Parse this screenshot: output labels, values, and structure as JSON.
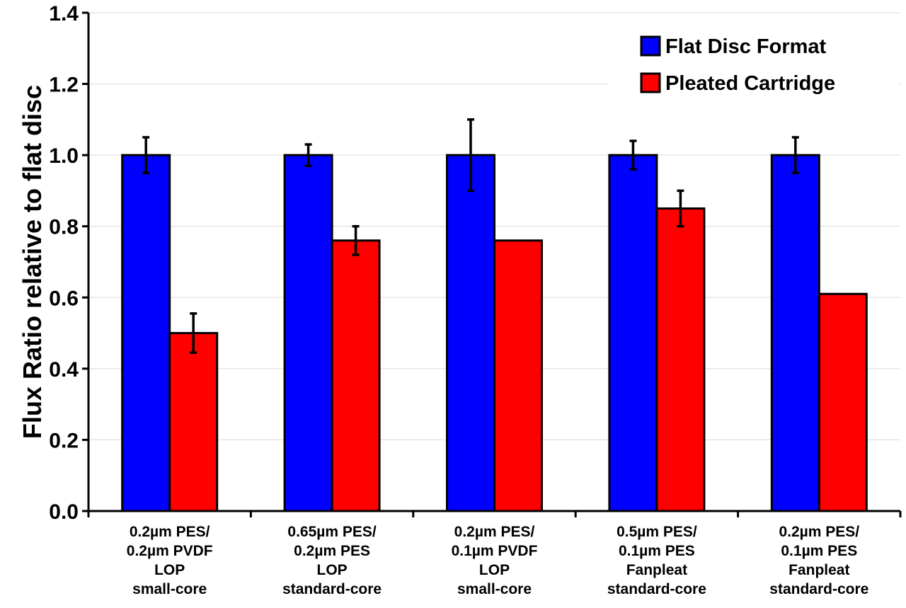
{
  "chart_data": {
    "type": "bar",
    "title": "",
    "xlabel": "",
    "ylabel": "Flux Ratio relative to flat disc",
    "ylim": [
      0,
      1.4
    ],
    "yticks": [
      "0.0",
      "0.2",
      "0.4",
      "0.6",
      "0.8",
      "1.0",
      "1.2",
      "1.4"
    ],
    "grid": true,
    "legend_position": "top-right",
    "categories": [
      [
        "0.2µm PES/",
        "0.2µm PVDF",
        "LOP",
        "small-core"
      ],
      [
        "0.65µm PES/",
        "0.2µm PES",
        "LOP",
        "standard-core"
      ],
      [
        "0.2µm PES/",
        "0.1µm PVDF",
        "LOP",
        "small-core"
      ],
      [
        "0.5µm PES/",
        "0.1µm PES",
        "Fanpleat",
        "standard-core"
      ],
      [
        "0.2µm PES/",
        "0.1µm PES",
        "Fanpleat",
        "standard-core"
      ]
    ],
    "series": [
      {
        "name": "Flat Disc Format",
        "color": "#0000ff",
        "values": [
          1.0,
          1.0,
          1.0,
          1.0,
          1.0
        ],
        "errors": [
          0.05,
          0.03,
          0.1,
          0.04,
          0.05
        ]
      },
      {
        "name": "Pleated Cartridge",
        "color": "#ff0000",
        "values": [
          0.5,
          0.76,
          0.76,
          0.85,
          0.61
        ],
        "errors": [
          0.055,
          0.04,
          null,
          0.05,
          null
        ]
      }
    ]
  }
}
